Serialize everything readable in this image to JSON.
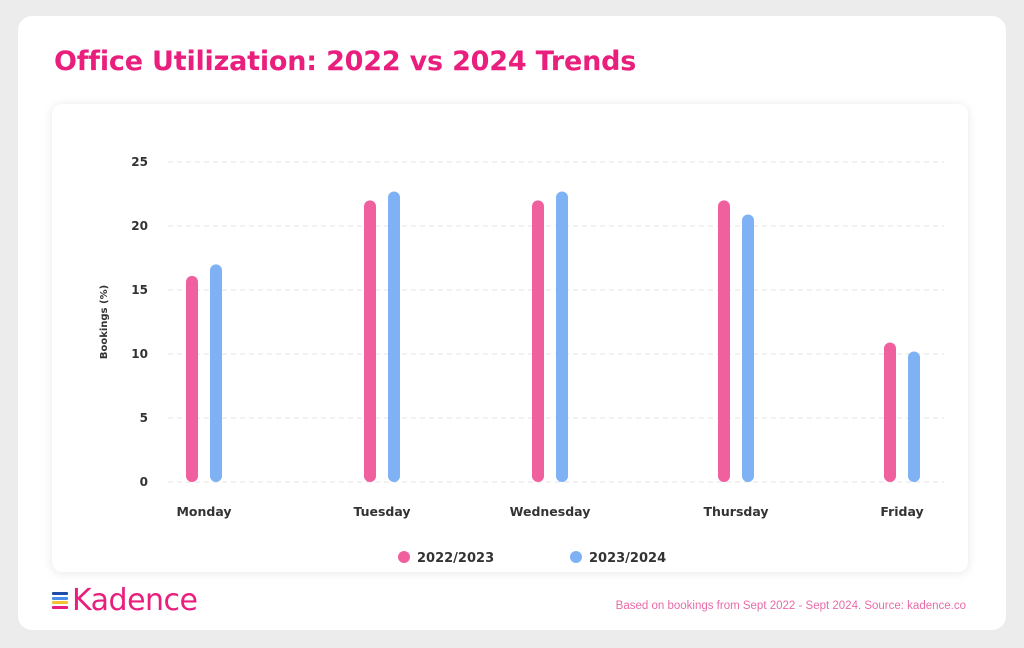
{
  "title": "Office Utilization: 2022 vs 2024 Trends",
  "logo_text": "Kadence",
  "source_note": "Based on bookings from Sept 2022 - Sept 2024. Source: kadence.co",
  "colors": {
    "brand": "#e91e7d",
    "series_1": "#f0609f",
    "series_2": "#7fb1f5",
    "logo_bars": [
      "#1f4ea8",
      "#4a8ee8",
      "#f2c230",
      "#e91e7d"
    ]
  },
  "chart_data": {
    "type": "bar",
    "title": "Office Utilization: 2022 vs 2024 Trends",
    "xlabel": "",
    "ylabel": "Bookings (%)",
    "ylim": [
      0,
      25
    ],
    "yticks": [
      0,
      5,
      10,
      15,
      20,
      25
    ],
    "grid": true,
    "legend": "bottom",
    "categories": [
      "Monday",
      "Tuesday",
      "Wednesday",
      "Thursday",
      "Friday"
    ],
    "series": [
      {
        "name": "2022/2023",
        "color": "#f0609f",
        "values": [
          16.1,
          22.0,
          22.0,
          22.0,
          10.9
        ]
      },
      {
        "name": "2023/2024",
        "color": "#7fb1f5",
        "values": [
          17.0,
          22.7,
          22.7,
          20.9,
          10.2
        ]
      }
    ]
  }
}
